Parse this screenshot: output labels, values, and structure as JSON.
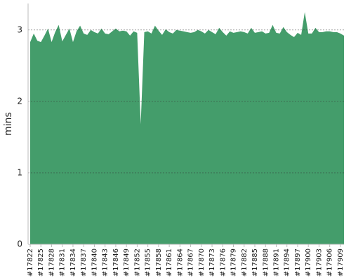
{
  "chart_data": {
    "type": "area",
    "y_label": "mins",
    "color": "#449d6b",
    "grid": true,
    "ylim": [
      0,
      3.37
    ],
    "yticks": [
      0,
      1,
      2,
      3
    ],
    "categories": [
      "#17822",
      null,
      null,
      "#17825",
      null,
      null,
      "#17828",
      null,
      null,
      "#17831",
      null,
      null,
      "#17834",
      null,
      null,
      "#17837",
      null,
      null,
      "#17840",
      null,
      null,
      "#17843",
      null,
      null,
      "#17846",
      null,
      null,
      "#17849",
      null,
      null,
      "#17852",
      null,
      null,
      "#17855",
      null,
      null,
      "#17858",
      null,
      null,
      "#17861",
      null,
      null,
      "#17864",
      null,
      null,
      "#17867",
      null,
      null,
      "#17870",
      null,
      null,
      "#17873",
      null,
      null,
      "#17876",
      null,
      null,
      "#17879",
      null,
      null,
      "#17882",
      null,
      null,
      "#17885",
      null,
      null,
      "#17888",
      null,
      null,
      "#17891",
      null,
      null,
      "#17894",
      null,
      null,
      "#17897",
      null,
      null,
      "#17900",
      null,
      null,
      "#17903",
      null,
      null,
      "#17906",
      null,
      null,
      "#17909",
      null
    ],
    "values": [
      2.83,
      2.95,
      2.85,
      2.83,
      2.92,
      3.02,
      2.83,
      2.97,
      3.07,
      2.84,
      2.93,
      3.02,
      2.83,
      2.98,
      3.06,
      2.95,
      2.93,
      3.0,
      2.97,
      2.95,
      3.02,
      2.95,
      2.94,
      2.98,
      3.02,
      2.98,
      2.99,
      2.98,
      2.92,
      2.98,
      2.96,
      1.68,
      2.97,
      2.98,
      2.95,
      3.06,
      2.99,
      2.93,
      3.01,
      2.97,
      2.95,
      3.0,
      2.99,
      2.98,
      2.97,
      2.96,
      2.97,
      3.0,
      2.98,
      2.95,
      3.0,
      2.97,
      2.94,
      3.03,
      2.97,
      2.92,
      2.98,
      2.96,
      2.97,
      2.98,
      2.97,
      2.95,
      3.03,
      2.96,
      2.97,
      2.98,
      2.95,
      2.96,
      3.07,
      2.96,
      2.95,
      3.04,
      2.97,
      2.93,
      2.9,
      2.96,
      2.93,
      3.25,
      2.95,
      2.95,
      3.03,
      2.97,
      2.97,
      2.98,
      2.98,
      2.97,
      2.97,
      2.95,
      2.92
    ]
  }
}
